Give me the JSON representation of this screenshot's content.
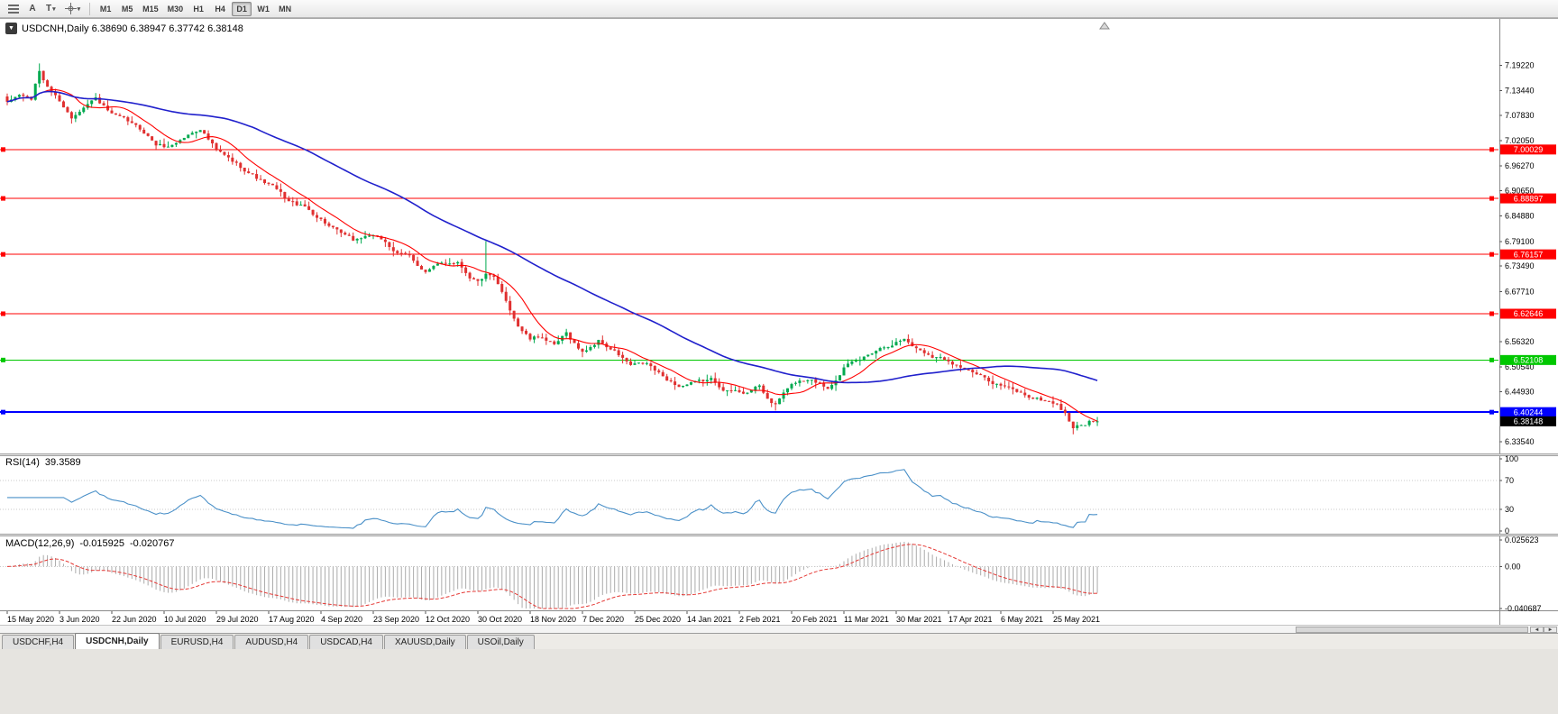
{
  "toolbar": {
    "timeframes": [
      "M1",
      "M5",
      "M15",
      "M30",
      "H1",
      "H4",
      "D1",
      "W1",
      "MN"
    ],
    "active_timeframe": "D1",
    "text_tool_label": "A",
    "type_tool_label": "T"
  },
  "header": {
    "symbol": "USDCNH,Daily",
    "open": "6.38690",
    "high": "6.38947",
    "low": "6.37742",
    "close": "6.38148"
  },
  "rsi": {
    "title": "RSI(14)",
    "value": "39.3589",
    "color": "#4A90C8",
    "levels": [
      70,
      30
    ],
    "ticks": [
      {
        "label": "100",
        "value": 100
      },
      {
        "label": "70",
        "value": 70
      },
      {
        "label": "30",
        "value": 30
      },
      {
        "label": "0",
        "value": 0
      }
    ]
  },
  "macd": {
    "title": "MACD(12,26,9)",
    "value1": "-0.015925",
    "value2": "-0.020767",
    "hist_color": "#ABABAB",
    "signal_color": "#E53935",
    "ticks": [
      {
        "label": "0.025623",
        "value": 0.025623
      },
      {
        "label": "0.00",
        "value": 0
      },
      {
        "label": "-0.040687",
        "value": -0.040687
      }
    ]
  },
  "tabs": [
    "USDCHF,H4",
    "USDCNH,Daily",
    "EURUSD,H4",
    "AUDUSD,H4",
    "USDCAD,H4",
    "XAUUSD,Daily",
    "USOil,Daily"
  ],
  "active_tab": "USDCNH,Daily",
  "scrollbar": {
    "left_arrow": "◄",
    "right_arrow": "►"
  },
  "chart_data": {
    "type": "candlestick",
    "symbol": "USDCNH",
    "timeframe": "Daily",
    "count": 272,
    "candles_per_label": 13,
    "last_close": 6.38148,
    "x_labels": [
      "15 May 2020",
      "3 Jun 2020",
      "22 Jun 2020",
      "10 Jul 2020",
      "29 Jul 2020",
      "17 Aug 2020",
      "4 Sep 2020",
      "23 Sep 2020",
      "12 Oct 2020",
      "30 Oct 2020",
      "18 Nov 2020",
      "7 Dec 2020",
      "25 Dec 2020",
      "14 Jan 2021",
      "2 Feb 2021",
      "20 Feb 2021",
      "11 Mar 2021",
      "30 Mar 2021",
      "17 Apr 2021",
      "6 May 2021",
      "25 May 2021"
    ],
    "price_axis": {
      "top": 7.2955,
      "bottom": 6.3104,
      "ticks": [
        "7.19220",
        "7.13440",
        "7.07830",
        "7.02050",
        "6.96270",
        "6.90650",
        "6.84880",
        "6.79100",
        "6.73490",
        "6.67710",
        "6.56320",
        "6.50540",
        "6.44930",
        "6.33540"
      ]
    },
    "hlines": [
      {
        "value": 7.00029,
        "label": "7.00029",
        "color": "#FF0000",
        "width": 1
      },
      {
        "value": 6.88897,
        "label": "6.88897",
        "color": "#FF0000",
        "width": 1
      },
      {
        "value": 6.76157,
        "label": "6.76157",
        "color": "#FF0000",
        "width": 1
      },
      {
        "value": 6.62646,
        "label": "6.62646",
        "color": "#FF0000",
        "width": 1
      },
      {
        "value": 6.52108,
        "label": "6.52108",
        "color": "#00C800",
        "width": 1
      },
      {
        "value": 6.40244,
        "label": "6.40244",
        "color": "#0000FF",
        "width": 2
      }
    ],
    "current_price": {
      "value": 6.38148,
      "label": "6.38148",
      "box_color": "#000000"
    },
    "colors": {
      "up": "#00A94F",
      "down": "#E03030",
      "ma_fast": "#FF0000",
      "ma_slow": "#2020CC",
      "background": "#FFFFFF"
    },
    "ma": [
      {
        "period": 10,
        "color_key": "ma_fast",
        "width": 1.1
      },
      {
        "period": 55,
        "color_key": "ma_slow",
        "width": 1.6
      }
    ],
    "anchors": [
      [
        0,
        7.105
      ],
      [
        3,
        7.125
      ],
      [
        6,
        7.115
      ],
      [
        8,
        7.178
      ],
      [
        9,
        7.158
      ],
      [
        11,
        7.132
      ],
      [
        13,
        7.112
      ],
      [
        16,
        7.072
      ],
      [
        19,
        7.102
      ],
      [
        22,
        7.118
      ],
      [
        26,
        7.078
      ],
      [
        30,
        7.062
      ],
      [
        34,
        7.04
      ],
      [
        37,
        7.012
      ],
      [
        40,
        7.006
      ],
      [
        44,
        7.028
      ],
      [
        48,
        7.05
      ],
      [
        52,
        6.998
      ],
      [
        56,
        6.972
      ],
      [
        60,
        6.95
      ],
      [
        63,
        6.93
      ],
      [
        66,
        6.915
      ],
      [
        70,
        6.882
      ],
      [
        74,
        6.868
      ],
      [
        78,
        6.842
      ],
      [
        82,
        6.812
      ],
      [
        86,
        6.792
      ],
      [
        90,
        6.806
      ],
      [
        94,
        6.79
      ],
      [
        97,
        6.762
      ],
      [
        100,
        6.756
      ],
      [
        104,
        6.722
      ],
      [
        108,
        6.74
      ],
      [
        112,
        6.746
      ],
      [
        115,
        6.712
      ],
      [
        117,
        6.7
      ],
      [
        119,
        6.715
      ],
      [
        121,
        6.705
      ],
      [
        124,
        6.655
      ],
      [
        127,
        6.6
      ],
      [
        130,
        6.568
      ],
      [
        133,
        6.575
      ],
      [
        136,
        6.552
      ],
      [
        139,
        6.58
      ],
      [
        143,
        6.538
      ],
      [
        147,
        6.565
      ],
      [
        151,
        6.54
      ],
      [
        155,
        6.508
      ],
      [
        159,
        6.512
      ],
      [
        163,
        6.482
      ],
      [
        167,
        6.462
      ],
      [
        171,
        6.468
      ],
      [
        175,
        6.476
      ],
      [
        179,
        6.452
      ],
      [
        183,
        6.448
      ],
      [
        187,
        6.46
      ],
      [
        189,
        6.432
      ],
      [
        191,
        6.418
      ],
      [
        193,
        6.446
      ],
      [
        196,
        6.47
      ],
      [
        200,
        6.48
      ],
      [
        204,
        6.458
      ],
      [
        208,
        6.506
      ],
      [
        212,
        6.52
      ],
      [
        216,
        6.546
      ],
      [
        220,
        6.56
      ],
      [
        223,
        6.57
      ],
      [
        226,
        6.548
      ],
      [
        230,
        6.532
      ],
      [
        234,
        6.522
      ],
      [
        238,
        6.502
      ],
      [
        242,
        6.482
      ],
      [
        246,
        6.468
      ],
      [
        250,
        6.452
      ],
      [
        254,
        6.438
      ],
      [
        258,
        6.428
      ],
      [
        261,
        6.422
      ],
      [
        263,
        6.398
      ],
      [
        265,
        6.368
      ],
      [
        267,
        6.372
      ],
      [
        269,
        6.38
      ],
      [
        271,
        6.38148
      ]
    ],
    "spikes": [
      [
        8,
        7.1962
      ],
      [
        119,
        6.792
      ],
      [
        191,
        6.406
      ],
      [
        265,
        6.352
      ]
    ]
  }
}
